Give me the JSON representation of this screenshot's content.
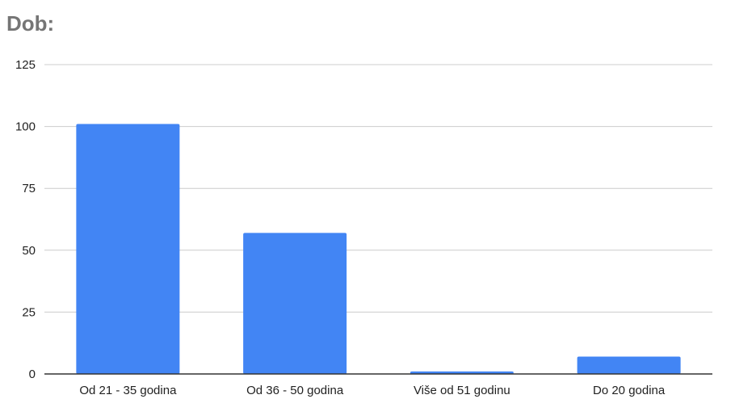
{
  "chart_data": {
    "type": "bar",
    "title": "Dob:",
    "xlabel": "",
    "ylabel": "",
    "categories": [
      "Od 21 - 35 godina",
      "Od 36 - 50 godina",
      "Više od 51 godinu",
      "Do 20 godina"
    ],
    "values": [
      101,
      57,
      1,
      7
    ],
    "ylim": [
      0,
      125
    ],
    "yticks": [
      0,
      25,
      50,
      75,
      100,
      125
    ],
    "grid": true,
    "legend": "none",
    "bar_color": "#4285f4",
    "grid_color": "#cccccc",
    "axis_color": "#333333"
  }
}
